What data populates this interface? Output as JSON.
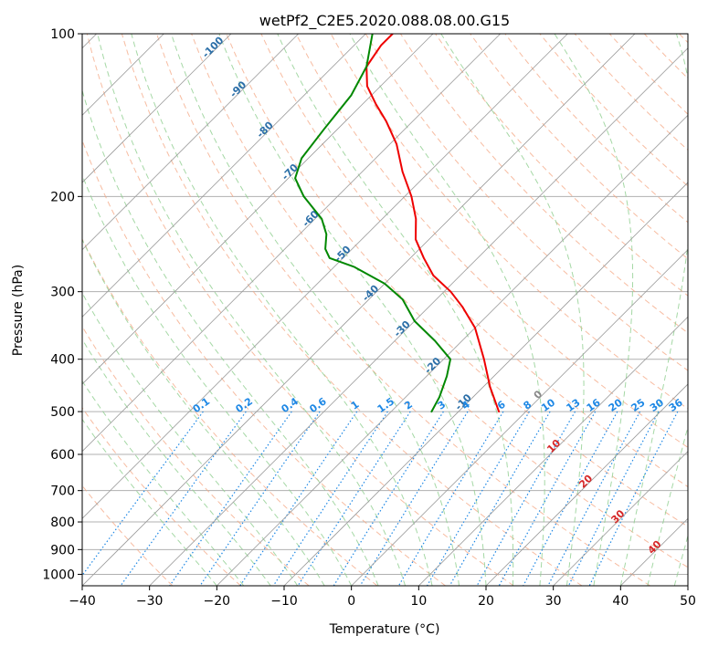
{
  "chart_data": {
    "type": "line",
    "title": "wetPf2_C2E5.2020.088.08.00.G15",
    "xlabel": "Temperature (°C)",
    "ylabel": "Pressure (hPa)",
    "xlim": [
      -40,
      50
    ],
    "ylim": [
      1050,
      100
    ],
    "y_scale": "log",
    "grid": true,
    "x_ticks": [
      -40,
      -30,
      -20,
      -10,
      0,
      10,
      20,
      30,
      40,
      50
    ],
    "y_ticks": [
      100,
      200,
      300,
      400,
      500,
      600,
      700,
      800,
      900,
      1000
    ],
    "series": [
      {
        "color": "#ee0000",
        "points": [
          {
            "p": 500,
            "t": -4
          },
          {
            "p": 450,
            "t": -9
          },
          {
            "p": 400,
            "t": -14
          },
          {
            "p": 350,
            "t": -20
          },
          {
            "p": 320,
            "t": -25
          },
          {
            "p": 300,
            "t": -29
          },
          {
            "p": 280,
            "t": -34
          },
          {
            "p": 260,
            "t": -38
          },
          {
            "p": 240,
            "t": -42
          },
          {
            "p": 220,
            "t": -45
          },
          {
            "p": 200,
            "t": -49
          },
          {
            "p": 180,
            "t": -54
          },
          {
            "p": 160,
            "t": -59
          },
          {
            "p": 145,
            "t": -64
          },
          {
            "p": 135,
            "t": -68
          },
          {
            "p": 125,
            "t": -72
          },
          {
            "p": 115,
            "t": -75
          },
          {
            "p": 105,
            "t": -76
          },
          {
            "p": 100,
            "t": -76
          }
        ]
      },
      {
        "color": "#008800",
        "points": [
          {
            "p": 500,
            "t": -14
          },
          {
            "p": 470,
            "t": -15
          },
          {
            "p": 430,
            "t": -17
          },
          {
            "p": 400,
            "t": -19
          },
          {
            "p": 370,
            "t": -24
          },
          {
            "p": 340,
            "t": -30
          },
          {
            "p": 310,
            "t": -35
          },
          {
            "p": 290,
            "t": -40
          },
          {
            "p": 270,
            "t": -47
          },
          {
            "p": 260,
            "t": -52
          },
          {
            "p": 250,
            "t": -54
          },
          {
            "p": 235,
            "t": -56
          },
          {
            "p": 220,
            "t": -59
          },
          {
            "p": 200,
            "t": -65
          },
          {
            "p": 185,
            "t": -69
          },
          {
            "p": 170,
            "t": -71
          },
          {
            "p": 150,
            "t": -72
          },
          {
            "p": 130,
            "t": -73
          },
          {
            "p": 115,
            "t": -75
          },
          {
            "p": 100,
            "t": -79
          }
        ]
      }
    ],
    "mixing_ratio_labels": [
      "0.1",
      "0.2",
      "0.4",
      "0.6",
      "1",
      "1.5",
      "2",
      "3",
      "4",
      "6",
      "8",
      "10",
      "13",
      "16",
      "20",
      "25",
      "30",
      "36"
    ],
    "mixing_ratio_values": [
      0.1,
      0.2,
      0.4,
      0.6,
      1,
      1.5,
      2,
      3,
      4,
      6,
      8,
      10,
      13,
      16,
      20,
      25,
      30,
      36
    ],
    "isotherm_labels_blue": [
      "-100",
      "-90",
      "-80",
      "-70",
      "-60",
      "-50",
      "-40",
      "-30",
      "-20",
      "-10"
    ],
    "isotherm_values_blue": [
      -100,
      -90,
      -80,
      -70,
      -60,
      -50,
      -40,
      -30,
      -20,
      -10
    ],
    "isotherm_labels_red": [
      "0",
      "10",
      "20",
      "30",
      "40"
    ],
    "isotherm_values_red": [
      0,
      10,
      20,
      30,
      40
    ],
    "colors": {
      "dry_adiabat": "#f4a582",
      "moist_adiabat": "#8fce8f",
      "mixing_ratio": "#1e88e5",
      "isotherm": "#9a9a9a",
      "isotherm_label_cold": "#2c6fa8",
      "isotherm_label_warm": "#d62728",
      "isotherm_label_zero": "#888888",
      "grid": "#b0b0b0",
      "frame": "#000000"
    }
  }
}
